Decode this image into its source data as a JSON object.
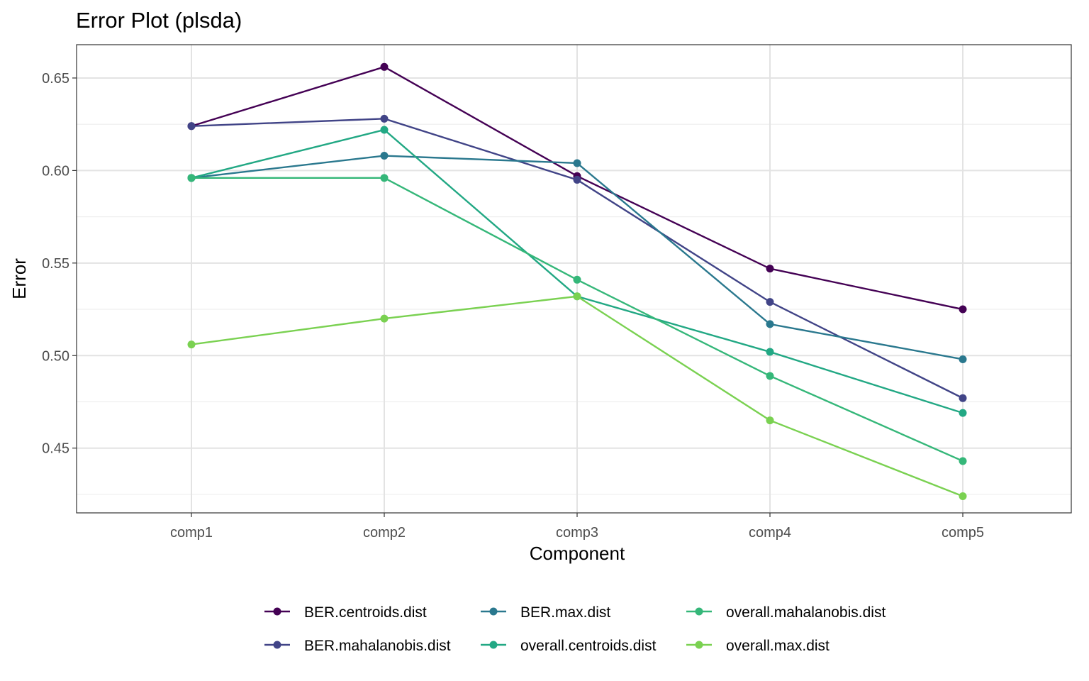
{
  "chart_data": {
    "type": "line",
    "title": "Error Plot (plsda)",
    "xlabel": "Component",
    "ylabel": "Error",
    "categories": [
      "comp1",
      "comp2",
      "comp3",
      "comp4",
      "comp5"
    ],
    "ylim": [
      0.415,
      0.668
    ],
    "yticks": [
      0.45,
      0.5,
      0.55,
      0.6,
      0.65
    ],
    "ytick_labels": [
      "0.45",
      "0.50",
      "0.55",
      "0.60",
      "0.65"
    ],
    "grid": true,
    "legend_position": "bottom",
    "series": [
      {
        "name": "BER.centroids.dist",
        "color": "#440154",
        "values": [
          0.624,
          0.656,
          0.597,
          0.547,
          0.525
        ]
      },
      {
        "name": "BER.mahalanobis.dist",
        "color": "#414487",
        "values": [
          0.624,
          0.628,
          0.595,
          0.529,
          0.477
        ]
      },
      {
        "name": "BER.max.dist",
        "color": "#2A788E",
        "values": [
          0.596,
          0.608,
          0.604,
          0.517,
          0.498
        ]
      },
      {
        "name": "overall.centroids.dist",
        "color": "#22A884",
        "values": [
          0.596,
          0.622,
          0.532,
          0.502,
          0.469
        ]
      },
      {
        "name": "overall.mahalanobis.dist",
        "color": "#35B779",
        "values": [
          0.596,
          0.596,
          0.541,
          0.489,
          0.443
        ]
      },
      {
        "name": "overall.max.dist",
        "color": "#7AD151",
        "values": [
          0.506,
          0.52,
          0.532,
          0.465,
          0.424
        ]
      }
    ]
  }
}
